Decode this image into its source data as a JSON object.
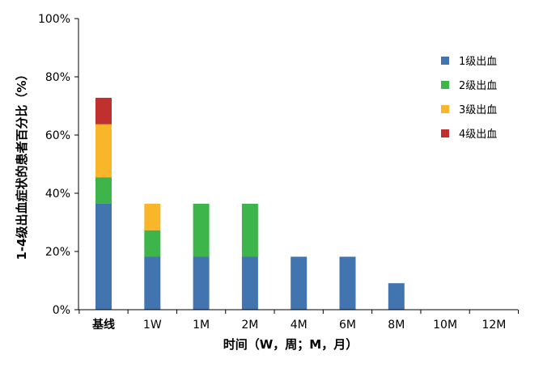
{
  "chart_data": {
    "type": "bar",
    "stacked": true,
    "title": "",
    "xlabel": "时间（W，周；M，月）",
    "ylabel": "1-4级出血症状的患者百分比（%）",
    "categories": [
      "基线",
      "1W",
      "1M",
      "2M",
      "4M",
      "6M",
      "8M",
      "10M",
      "12M"
    ],
    "y_tick_labels": [
      "0%",
      "20%",
      "40%",
      "60%",
      "80%",
      "100%"
    ],
    "ylim": [
      0,
      100
    ],
    "grid": false,
    "legend_position": "right",
    "series": [
      {
        "name": "1级出血",
        "color": "#4275B0",
        "values": [
          36.4,
          18.2,
          18.2,
          18.2,
          18.2,
          18.2,
          9.1,
          0,
          0
        ]
      },
      {
        "name": "2级出血",
        "color": "#3DB54A",
        "values": [
          9.1,
          9.1,
          18.2,
          18.2,
          0,
          0,
          0,
          0,
          0
        ]
      },
      {
        "name": "3级出血",
        "color": "#F9B62A",
        "values": [
          18.2,
          9.1,
          0,
          0,
          0,
          0,
          0,
          0,
          0
        ]
      },
      {
        "name": "4级出血",
        "color": "#C0302E",
        "values": [
          9.1,
          0,
          0,
          0,
          0,
          0,
          0,
          0,
          0
        ]
      }
    ]
  }
}
